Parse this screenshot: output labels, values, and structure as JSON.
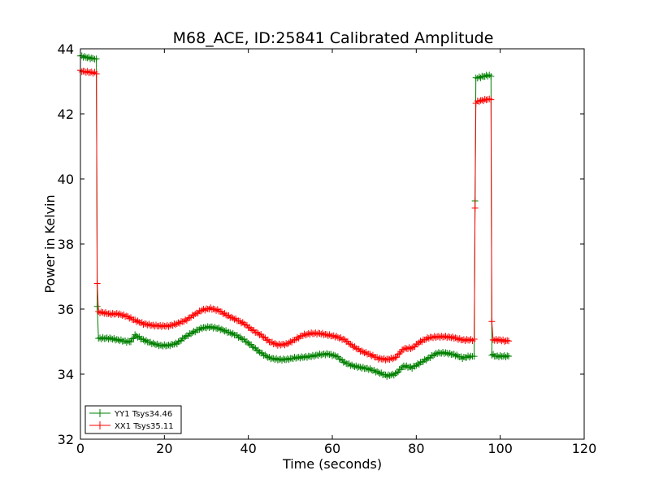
{
  "chart_data": {
    "type": "line",
    "title": "M68_ACE, ID:25841 Calibrated Amplitude",
    "xlabel": "Time (seconds)",
    "ylabel": "Power in Kelvin",
    "xlim": [
      0,
      120
    ],
    "ylim": [
      32,
      44
    ],
    "xticks": [
      "0",
      "20",
      "40",
      "60",
      "80",
      "100",
      "120"
    ],
    "yticks": [
      "32",
      "34",
      "36",
      "38",
      "40",
      "42",
      "44"
    ],
    "grid": false,
    "legend_position": "lower-left",
    "marker": "+",
    "series": [
      {
        "name": "YY1 Tsys34.46",
        "color": "#008000",
        "points": [
          [
            0,
            43.78
          ],
          [
            1,
            43.75
          ],
          [
            2,
            43.72
          ],
          [
            3,
            43.7
          ],
          [
            3.8,
            43.68
          ],
          [
            4.0,
            36.1
          ],
          [
            4.3,
            35.1
          ],
          [
            5,
            35.1
          ],
          [
            7,
            35.1
          ],
          [
            9,
            35.05
          ],
          [
            11,
            35.0
          ],
          [
            12,
            35.0
          ],
          [
            13,
            35.2
          ],
          [
            15,
            35.05
          ],
          [
            17,
            34.95
          ],
          [
            19,
            34.88
          ],
          [
            21,
            34.88
          ],
          [
            23,
            34.95
          ],
          [
            25,
            35.15
          ],
          [
            27,
            35.3
          ],
          [
            29,
            35.42
          ],
          [
            31,
            35.45
          ],
          [
            33,
            35.4
          ],
          [
            35,
            35.3
          ],
          [
            37,
            35.2
          ],
          [
            39,
            35.05
          ],
          [
            41,
            34.85
          ],
          [
            43,
            34.65
          ],
          [
            45,
            34.5
          ],
          [
            47,
            34.45
          ],
          [
            49,
            34.45
          ],
          [
            51,
            34.5
          ],
          [
            53,
            34.52
          ],
          [
            55,
            34.55
          ],
          [
            57,
            34.6
          ],
          [
            59,
            34.62
          ],
          [
            61,
            34.55
          ],
          [
            63,
            34.35
          ],
          [
            65,
            34.25
          ],
          [
            67,
            34.2
          ],
          [
            69,
            34.15
          ],
          [
            71,
            34.05
          ],
          [
            73,
            33.95
          ],
          [
            75,
            34.0
          ],
          [
            77,
            34.25
          ],
          [
            79,
            34.2
          ],
          [
            81,
            34.35
          ],
          [
            83,
            34.5
          ],
          [
            85,
            34.65
          ],
          [
            87,
            34.65
          ],
          [
            89,
            34.6
          ],
          [
            91,
            34.5
          ],
          [
            93,
            34.55
          ],
          [
            93.8,
            34.55
          ],
          [
            94.0,
            39.3
          ],
          [
            94.2,
            43.1
          ],
          [
            95,
            43.12
          ],
          [
            96,
            43.15
          ],
          [
            97,
            43.18
          ],
          [
            97.8,
            43.17
          ],
          [
            98.0,
            34.6
          ],
          [
            99,
            34.55
          ],
          [
            100,
            34.55
          ],
          [
            101,
            34.55
          ],
          [
            102,
            34.55
          ]
        ]
      },
      {
        "name": "XX1 Tsys35.11",
        "color": "#ff0000",
        "points": [
          [
            0,
            43.32
          ],
          [
            1,
            43.3
          ],
          [
            2,
            43.28
          ],
          [
            3,
            43.27
          ],
          [
            3.8,
            43.25
          ],
          [
            4.0,
            36.8
          ],
          [
            4.3,
            35.9
          ],
          [
            5,
            35.9
          ],
          [
            7,
            35.85
          ],
          [
            9,
            35.85
          ],
          [
            11,
            35.78
          ],
          [
            13,
            35.65
          ],
          [
            15,
            35.55
          ],
          [
            17,
            35.5
          ],
          [
            19,
            35.48
          ],
          [
            21,
            35.48
          ],
          [
            23,
            35.55
          ],
          [
            25,
            35.65
          ],
          [
            27,
            35.82
          ],
          [
            29,
            35.97
          ],
          [
            31,
            36.02
          ],
          [
            33,
            35.95
          ],
          [
            35,
            35.8
          ],
          [
            37,
            35.68
          ],
          [
            39,
            35.55
          ],
          [
            41,
            35.35
          ],
          [
            43,
            35.2
          ],
          [
            45,
            35.0
          ],
          [
            47,
            34.9
          ],
          [
            49,
            34.92
          ],
          [
            51,
            35.05
          ],
          [
            53,
            35.2
          ],
          [
            55,
            35.25
          ],
          [
            57,
            35.25
          ],
          [
            59,
            35.2
          ],
          [
            61,
            35.15
          ],
          [
            63,
            35.05
          ],
          [
            65,
            34.85
          ],
          [
            67,
            34.7
          ],
          [
            69,
            34.6
          ],
          [
            71,
            34.48
          ],
          [
            73,
            34.45
          ],
          [
            75,
            34.5
          ],
          [
            77,
            34.78
          ],
          [
            79,
            34.8
          ],
          [
            81,
            35.0
          ],
          [
            83,
            35.12
          ],
          [
            85,
            35.15
          ],
          [
            87,
            35.15
          ],
          [
            89,
            35.12
          ],
          [
            91,
            35.05
          ],
          [
            93,
            35.05
          ],
          [
            93.8,
            35.05
          ],
          [
            94.0,
            39.1
          ],
          [
            94.2,
            42.35
          ],
          [
            95,
            42.4
          ],
          [
            96,
            42.42
          ],
          [
            97,
            42.45
          ],
          [
            97.8,
            42.45
          ],
          [
            98.0,
            35.6
          ],
          [
            98.3,
            35.05
          ],
          [
            99,
            35.05
          ],
          [
            100,
            35.05
          ],
          [
            101,
            35.02
          ],
          [
            102,
            35.02
          ]
        ]
      }
    ]
  }
}
